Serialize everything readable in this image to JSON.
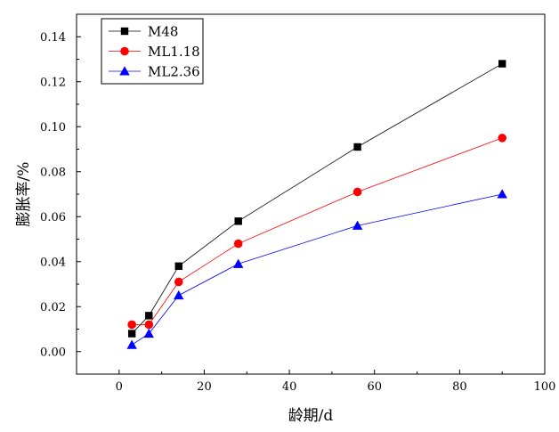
{
  "chart_data": {
    "type": "line",
    "xlabel": "龄期/d",
    "ylabel": "膨胀率/%",
    "xlim": [
      -10,
      100
    ],
    "ylim": [
      -0.01,
      0.15
    ],
    "xticks": [
      0,
      20,
      40,
      60,
      80,
      100
    ],
    "yticks": [
      0.0,
      0.02,
      0.04,
      0.06,
      0.08,
      0.1,
      0.12,
      0.14
    ],
    "ytick_labels": [
      "0.00",
      "0.02",
      "0.04",
      "0.06",
      "0.08",
      "0.10",
      "0.12",
      "0.14"
    ],
    "xtick_labels": [
      "0",
      "20",
      "40",
      "60",
      "80",
      "100"
    ],
    "grid": false,
    "legend_position": "top-left",
    "x": [
      3,
      7,
      14,
      28,
      56,
      90
    ],
    "series": [
      {
        "name": "M48",
        "color": "#000000",
        "marker": "square",
        "values": [
          0.008,
          0.016,
          0.038,
          0.058,
          0.091,
          0.128
        ]
      },
      {
        "name": "ML1.18",
        "color": "#ff0000",
        "marker": "circle",
        "values": [
          0.012,
          0.012,
          0.031,
          0.048,
          0.071,
          0.095
        ]
      },
      {
        "name": "ML2.36",
        "color": "#0000ff",
        "marker": "triangle",
        "values": [
          0.003,
          0.008,
          0.025,
          0.039,
          0.056,
          0.07
        ]
      }
    ]
  }
}
